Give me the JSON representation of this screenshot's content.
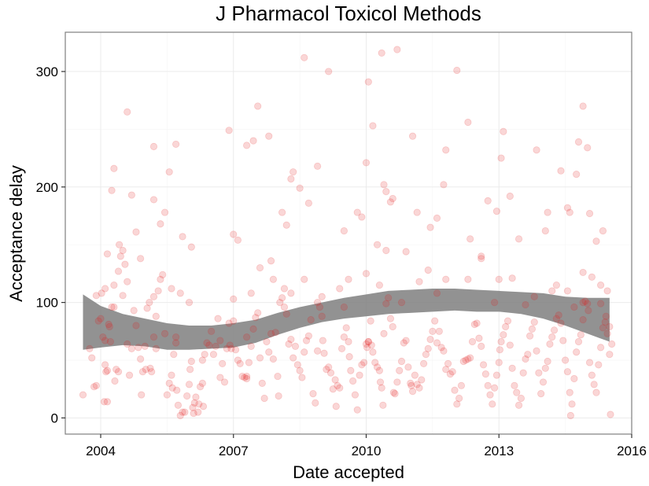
{
  "chart_data": {
    "type": "scatter",
    "title": "J Pharmacol Toxicol Methods",
    "xlabel": "Date accepted",
    "ylabel": "Acceptance delay",
    "xlim": [
      2003.2,
      2016.0
    ],
    "ylim": [
      -14,
      334
    ],
    "x_ticks": [
      2004,
      2007,
      2010,
      2013,
      2016
    ],
    "y_ticks": [
      0,
      100,
      200,
      300
    ],
    "grid": true,
    "point_color": "#e41a1c",
    "point_alpha": 0.18,
    "band_color": "#7f7f7f",
    "smooth_band": {
      "x": [
        2003.6,
        2004.0,
        2004.5,
        2005.0,
        2005.5,
        2006.0,
        2006.5,
        2007.0,
        2007.5,
        2008.0,
        2008.5,
        2009.0,
        2009.5,
        2010.0,
        2010.5,
        2011.0,
        2011.5,
        2012.0,
        2012.5,
        2013.0,
        2013.5,
        2014.0,
        2014.5,
        2015.0,
        2015.5
      ],
      "lower": [
        59,
        61,
        63,
        62,
        59,
        59,
        60,
        61,
        65,
        72,
        78,
        83,
        86,
        88,
        90,
        91,
        92,
        93,
        92,
        92,
        90,
        86,
        80,
        73,
        66
      ],
      "upper": [
        107,
        97,
        90,
        86,
        82,
        80,
        80,
        82,
        85,
        91,
        96,
        100,
        104,
        107,
        110,
        111,
        112,
        112,
        111,
        110,
        109,
        108,
        105,
        104,
        104
      ]
    },
    "points": [
      [
        2003.6,
        20
      ],
      [
        2003.75,
        60
      ],
      [
        2003.8,
        52
      ],
      [
        2003.85,
        27
      ],
      [
        2003.9,
        28
      ],
      [
        2003.95,
        84
      ],
      [
        2004.0,
        86
      ],
      [
        2004.02,
        108
      ],
      [
        2004.05,
        70
      ],
      [
        2004.08,
        14
      ],
      [
        2004.1,
        46
      ],
      [
        2004.12,
        40
      ],
      [
        2004.15,
        41
      ],
      [
        2004.18,
        81
      ],
      [
        2004.2,
        79
      ],
      [
        2004.22,
        66
      ],
      [
        2004.25,
        96
      ],
      [
        2004.3,
        96
      ],
      [
        2004.32,
        32
      ],
      [
        2004.35,
        42
      ],
      [
        2004.4,
        40
      ],
      [
        2004.45,
        140
      ],
      [
        2004.5,
        145
      ],
      [
        2004.55,
        133
      ],
      [
        2004.6,
        64
      ],
      [
        2004.65,
        37
      ],
      [
        2004.7,
        60
      ],
      [
        2004.75,
        93
      ],
      [
        2004.8,
        80
      ],
      [
        2004.85,
        61
      ],
      [
        2004.9,
        51
      ],
      [
        2004.92,
        20
      ],
      [
        2004.95,
        40
      ],
      [
        2005.0,
        62
      ],
      [
        2005.02,
        42
      ],
      [
        2005.05,
        95
      ],
      [
        2005.1,
        100
      ],
      [
        2005.12,
        43
      ],
      [
        2005.15,
        40
      ],
      [
        2005.2,
        70
      ],
      [
        2005.25,
        88
      ],
      [
        2005.3,
        110
      ],
      [
        2005.35,
        120
      ],
      [
        2005.4,
        124
      ],
      [
        2005.45,
        73
      ],
      [
        2005.5,
        20
      ],
      [
        2005.55,
        30
      ],
      [
        2005.6,
        37
      ],
      [
        2005.62,
        26
      ],
      [
        2005.65,
        55
      ],
      [
        2005.7,
        70
      ],
      [
        2005.72,
        24
      ],
      [
        2005.75,
        11
      ],
      [
        2005.8,
        2
      ],
      [
        2005.85,
        5
      ],
      [
        2005.9,
        5
      ],
      [
        2005.95,
        19
      ],
      [
        2006.0,
        29
      ],
      [
        2006.02,
        42
      ],
      [
        2006.05,
        49
      ],
      [
        2006.08,
        9
      ],
      [
        2006.1,
        4
      ],
      [
        2006.12,
        13
      ],
      [
        2006.15,
        18
      ],
      [
        2006.2,
        5
      ],
      [
        2006.22,
        12
      ],
      [
        2006.25,
        27
      ],
      [
        2006.3,
        30
      ],
      [
        2006.32,
        10
      ],
      [
        2006.35,
        55
      ],
      [
        2006.4,
        65
      ],
      [
        2006.45,
        63
      ],
      [
        2006.5,
        75
      ],
      [
        2006.55,
        55
      ],
      [
        2006.6,
        62
      ],
      [
        2006.65,
        86
      ],
      [
        2006.7,
        67
      ],
      [
        2006.75,
        47
      ],
      [
        2006.8,
        31
      ],
      [
        2006.85,
        60
      ],
      [
        2006.9,
        82
      ],
      [
        2006.92,
        63
      ],
      [
        2006.95,
        60
      ],
      [
        2007.0,
        84
      ],
      [
        2007.05,
        59
      ],
      [
        2007.1,
        50
      ],
      [
        2007.15,
        47
      ],
      [
        2007.2,
        36
      ],
      [
        2007.25,
        35
      ],
      [
        2007.3,
        70
      ],
      [
        2007.35,
        48
      ],
      [
        2007.4,
        62
      ],
      [
        2007.45,
        77
      ],
      [
        2007.5,
        87
      ],
      [
        2007.55,
        91
      ],
      [
        2007.6,
        52
      ],
      [
        2007.65,
        30
      ],
      [
        2007.7,
        17
      ],
      [
        2007.75,
        66
      ],
      [
        2007.8,
        57
      ],
      [
        2007.85,
        73
      ],
      [
        2007.9,
        51
      ],
      [
        2007.95,
        74
      ],
      [
        2008.0,
        36
      ],
      [
        2008.02,
        19
      ],
      [
        2008.05,
        100
      ],
      [
        2008.1,
        104
      ],
      [
        2008.15,
        96
      ],
      [
        2008.2,
        90
      ],
      [
        2008.25,
        64
      ],
      [
        2008.3,
        68
      ],
      [
        2008.35,
        52
      ],
      [
        2008.4,
        62
      ],
      [
        2008.45,
        46
      ],
      [
        2008.5,
        41
      ],
      [
        2008.55,
        35
      ],
      [
        2008.6,
        57
      ],
      [
        2008.65,
        67
      ],
      [
        2008.7,
        71
      ],
      [
        2008.75,
        85
      ],
      [
        2008.8,
        21
      ],
      [
        2008.85,
        13
      ],
      [
        2008.9,
        58
      ],
      [
        2008.95,
        96
      ],
      [
        2009.0,
        88
      ],
      [
        2009.02,
        67
      ],
      [
        2009.05,
        56
      ],
      [
        2009.1,
        42
      ],
      [
        2009.15,
        44
      ],
      [
        2009.2,
        39
      ],
      [
        2009.25,
        25
      ],
      [
        2009.3,
        33
      ],
      [
        2009.32,
        10
      ],
      [
        2009.35,
        28
      ],
      [
        2009.4,
        26
      ],
      [
        2009.45,
        60
      ],
      [
        2009.5,
        70
      ],
      [
        2009.55,
        78
      ],
      [
        2009.6,
        66
      ],
      [
        2009.62,
        53
      ],
      [
        2009.65,
        41
      ],
      [
        2009.7,
        32
      ],
      [
        2009.75,
        20
      ],
      [
        2009.8,
        7
      ],
      [
        2009.85,
        37
      ],
      [
        2009.9,
        46
      ],
      [
        2009.95,
        48
      ],
      [
        2010.0,
        64
      ],
      [
        2010.02,
        61
      ],
      [
        2010.05,
        66
      ],
      [
        2010.1,
        84
      ],
      [
        2010.12,
        63
      ],
      [
        2010.15,
        57
      ],
      [
        2010.2,
        48
      ],
      [
        2010.25,
        44
      ],
      [
        2010.3,
        41
      ],
      [
        2010.32,
        31
      ],
      [
        2010.35,
        26
      ],
      [
        2010.38,
        11
      ],
      [
        2010.4,
        73
      ],
      [
        2010.45,
        99
      ],
      [
        2010.5,
        104
      ],
      [
        2010.55,
        86
      ],
      [
        2010.6,
        79
      ],
      [
        2010.62,
        22
      ],
      [
        2010.65,
        21
      ],
      [
        2010.7,
        31
      ],
      [
        2010.75,
        41
      ],
      [
        2010.8,
        49
      ],
      [
        2010.85,
        65
      ],
      [
        2010.9,
        67
      ],
      [
        2010.95,
        44
      ],
      [
        2011.0,
        30
      ],
      [
        2011.02,
        28
      ],
      [
        2011.05,
        23
      ],
      [
        2011.1,
        37
      ],
      [
        2011.15,
        29
      ],
      [
        2011.2,
        26
      ],
      [
        2011.25,
        33
      ],
      [
        2011.3,
        47
      ],
      [
        2011.35,
        55
      ],
      [
        2011.4,
        60
      ],
      [
        2011.45,
        68
      ],
      [
        2011.5,
        75
      ],
      [
        2011.55,
        84
      ],
      [
        2011.6,
        65
      ],
      [
        2011.65,
        75
      ],
      [
        2011.7,
        61
      ],
      [
        2011.75,
        58
      ],
      [
        2011.8,
        42
      ],
      [
        2011.85,
        47
      ],
      [
        2011.9,
        38
      ],
      [
        2011.95,
        40
      ],
      [
        2012.0,
        24
      ],
      [
        2012.05,
        12
      ],
      [
        2012.1,
        17
      ],
      [
        2012.15,
        28
      ],
      [
        2012.2,
        49
      ],
      [
        2012.25,
        50
      ],
      [
        2012.3,
        51
      ],
      [
        2012.35,
        52
      ],
      [
        2012.4,
        66
      ],
      [
        2012.45,
        81
      ],
      [
        2012.5,
        82
      ],
      [
        2012.55,
        69
      ],
      [
        2012.6,
        62
      ],
      [
        2012.65,
        46
      ],
      [
        2012.7,
        38
      ],
      [
        2012.75,
        28
      ],
      [
        2012.8,
        20
      ],
      [
        2012.85,
        12
      ],
      [
        2012.9,
        26
      ],
      [
        2012.95,
        37
      ],
      [
        2013.0,
        48
      ],
      [
        2013.02,
        59
      ],
      [
        2013.05,
        66
      ],
      [
        2013.1,
        72
      ],
      [
        2013.15,
        79
      ],
      [
        2013.2,
        84
      ],
      [
        2013.25,
        63
      ],
      [
        2013.3,
        43
      ],
      [
        2013.35,
        28
      ],
      [
        2013.4,
        22
      ],
      [
        2013.45,
        11
      ],
      [
        2013.5,
        17
      ],
      [
        2013.55,
        39
      ],
      [
        2013.6,
        51
      ],
      [
        2013.65,
        55
      ],
      [
        2013.7,
        71
      ],
      [
        2013.75,
        77
      ],
      [
        2013.8,
        83
      ],
      [
        2013.85,
        58
      ],
      [
        2013.9,
        39
      ],
      [
        2013.95,
        21
      ],
      [
        2014.0,
        31
      ],
      [
        2014.05,
        43
      ],
      [
        2014.1,
        49
      ],
      [
        2014.15,
        64
      ],
      [
        2014.2,
        70
      ],
      [
        2014.25,
        76
      ],
      [
        2014.3,
        86
      ],
      [
        2014.35,
        89
      ],
      [
        2014.4,
        82
      ],
      [
        2014.45,
        67
      ],
      [
        2014.5,
        50
      ],
      [
        2014.55,
        40
      ],
      [
        2014.6,
        22
      ],
      [
        2014.62,
        2
      ],
      [
        2014.65,
        12
      ],
      [
        2014.7,
        34
      ],
      [
        2014.75,
        57
      ],
      [
        2014.8,
        66
      ],
      [
        2014.85,
        72
      ],
      [
        2014.9,
        85
      ],
      [
        2014.95,
        101
      ],
      [
        2015.0,
        99
      ],
      [
        2015.02,
        93
      ],
      [
        2015.05,
        48
      ],
      [
        2015.1,
        37
      ],
      [
        2015.15,
        29
      ],
      [
        2015.2,
        22
      ],
      [
        2015.25,
        46
      ],
      [
        2015.3,
        61
      ],
      [
        2015.35,
        78
      ],
      [
        2015.4,
        83
      ],
      [
        2015.42,
        88
      ],
      [
        2015.45,
        73
      ],
      [
        2015.5,
        55
      ],
      [
        2015.52,
        3
      ],
      [
        2015.55,
        64
      ],
      [
        2004.1,
        67
      ],
      [
        2004.4,
        127
      ],
      [
        2004.6,
        118
      ],
      [
        2005.2,
        105
      ],
      [
        2005.7,
        65
      ],
      [
        2005.8,
        108
      ],
      [
        2006.3,
        50
      ],
      [
        2006.7,
        35
      ],
      [
        2007.6,
        130
      ],
      [
        2007.9,
        120
      ],
      [
        2008.15,
        112
      ],
      [
        2008.6,
        120
      ],
      [
        2009.0,
        105
      ],
      [
        2009.4,
        112
      ],
      [
        2009.6,
        120
      ],
      [
        2010.0,
        125
      ],
      [
        2010.3,
        115
      ],
      [
        2011.2,
        118
      ],
      [
        2011.4,
        128
      ],
      [
        2011.8,
        120
      ],
      [
        2012.3,
        120
      ],
      [
        2012.6,
        140
      ],
      [
        2013.0,
        120
      ],
      [
        2013.3,
        121
      ],
      [
        2013.8,
        105
      ],
      [
        2014.2,
        110
      ],
      [
        2014.3,
        115
      ],
      [
        2014.55,
        110
      ],
      [
        2014.9,
        126
      ],
      [
        2015.1,
        122
      ],
      [
        2015.3,
        115
      ],
      [
        2015.45,
        110
      ],
      [
        2004.1,
        112
      ],
      [
        2004.3,
        115
      ],
      [
        2004.5,
        106
      ],
      [
        2005.6,
        112
      ],
      [
        2006.0,
        100
      ],
      [
        2007.0,
        103
      ],
      [
        2007.4,
        108
      ],
      [
        2008.3,
        108
      ],
      [
        2008.9,
        100
      ],
      [
        2009.5,
        96
      ],
      [
        2010.8,
        100
      ],
      [
        2011.6,
        108
      ],
      [
        2012.9,
        100
      ],
      [
        2013.6,
        98
      ],
      [
        2014.7,
        96
      ],
      [
        2015.3,
        99
      ],
      [
        2003.9,
        106
      ],
      [
        2004.15,
        142
      ],
      [
        2004.25,
        197
      ],
      [
        2004.3,
        216
      ],
      [
        2004.42,
        150
      ],
      [
        2004.6,
        265
      ],
      [
        2004.7,
        193
      ],
      [
        2004.8,
        161
      ],
      [
        2004.9,
        138
      ],
      [
        2005.2,
        235
      ],
      [
        2005.2,
        189
      ],
      [
        2005.35,
        168
      ],
      [
        2005.45,
        178
      ],
      [
        2005.55,
        213
      ],
      [
        2005.7,
        237
      ],
      [
        2005.85,
        157
      ],
      [
        2006.05,
        148
      ],
      [
        2006.9,
        249
      ],
      [
        2007.0,
        159
      ],
      [
        2007.1,
        154
      ],
      [
        2007.3,
        236
      ],
      [
        2007.45,
        240
      ],
      [
        2007.55,
        270
      ],
      [
        2007.8,
        244
      ],
      [
        2007.85,
        136
      ],
      [
        2008.1,
        178
      ],
      [
        2008.2,
        167
      ],
      [
        2008.3,
        207
      ],
      [
        2008.35,
        213
      ],
      [
        2008.5,
        199
      ],
      [
        2008.6,
        312
      ],
      [
        2008.7,
        186
      ],
      [
        2008.9,
        218
      ],
      [
        2009.15,
        300
      ],
      [
        2009.5,
        162
      ],
      [
        2009.8,
        178
      ],
      [
        2009.9,
        174
      ],
      [
        2010.0,
        221
      ],
      [
        2010.05,
        291
      ],
      [
        2010.15,
        253
      ],
      [
        2010.25,
        150
      ],
      [
        2010.35,
        316
      ],
      [
        2010.4,
        202
      ],
      [
        2010.45,
        196
      ],
      [
        2010.55,
        187
      ],
      [
        2010.6,
        190
      ],
      [
        2010.7,
        319
      ],
      [
        2010.9,
        144
      ],
      [
        2011.05,
        244
      ],
      [
        2011.15,
        178
      ],
      [
        2011.45,
        165
      ],
      [
        2011.6,
        173
      ],
      [
        2011.75,
        202
      ],
      [
        2011.8,
        232
      ],
      [
        2012.05,
        301
      ],
      [
        2012.3,
        256
      ],
      [
        2012.35,
        155
      ],
      [
        2012.6,
        138
      ],
      [
        2012.75,
        188
      ],
      [
        2012.95,
        179
      ],
      [
        2013.05,
        225
      ],
      [
        2013.1,
        248
      ],
      [
        2013.25,
        192
      ],
      [
        2013.45,
        155
      ],
      [
        2013.85,
        232
      ],
      [
        2014.05,
        162
      ],
      [
        2014.1,
        178
      ],
      [
        2014.4,
        214
      ],
      [
        2014.55,
        182
      ],
      [
        2014.6,
        178
      ],
      [
        2014.75,
        211
      ],
      [
        2014.8,
        239
      ],
      [
        2014.9,
        270
      ],
      [
        2015.0,
        234
      ],
      [
        2015.05,
        177
      ],
      [
        2015.2,
        153
      ],
      [
        2015.35,
        162
      ],
      [
        2004.15,
        14
      ],
      [
        2005.25,
        60
      ],
      [
        2007.3,
        36
      ],
      [
        2007.3,
        34
      ],
      [
        2010.05,
        66
      ],
      [
        2010.45,
        145
      ],
      [
        2014.9,
        100
      ],
      [
        2015.5,
        79
      ]
    ]
  }
}
